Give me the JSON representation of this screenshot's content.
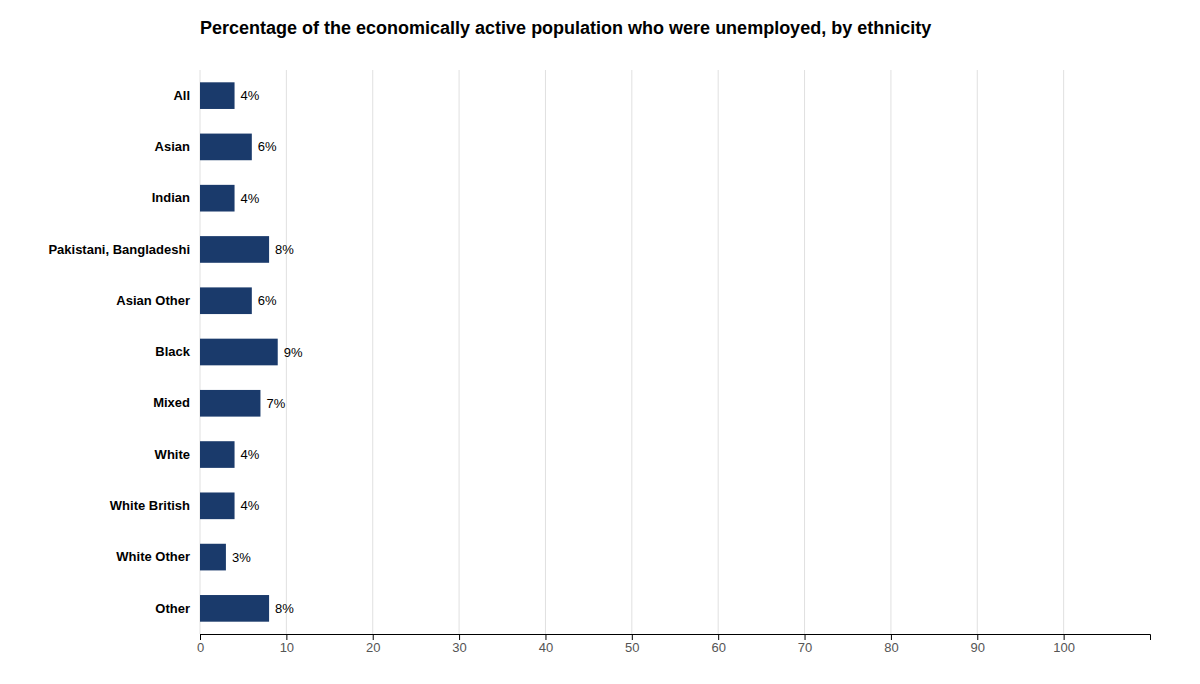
{
  "chart_data": {
    "type": "bar",
    "orientation": "horizontal",
    "title": "Percentage of the economically active population who were unemployed, by ethnicity",
    "categories": [
      "All",
      "Asian",
      "Indian",
      "Pakistani, Bangladeshi",
      "Asian Other",
      "Black",
      "Mixed",
      "White",
      "White British",
      "White Other",
      "Other"
    ],
    "values": [
      4,
      6,
      4,
      8,
      6,
      9,
      7,
      4,
      4,
      3,
      8
    ],
    "value_labels": [
      "4%",
      "6%",
      "4%",
      "8%",
      "6%",
      "9%",
      "7%",
      "4%",
      "4%",
      "3%",
      "8%"
    ],
    "data_labels": true,
    "color": "#1a3a6b",
    "xlim": [
      0,
      110
    ],
    "xticks": [
      0,
      10,
      20,
      30,
      40,
      50,
      60,
      70,
      80,
      90,
      100
    ],
    "grid": true
  }
}
